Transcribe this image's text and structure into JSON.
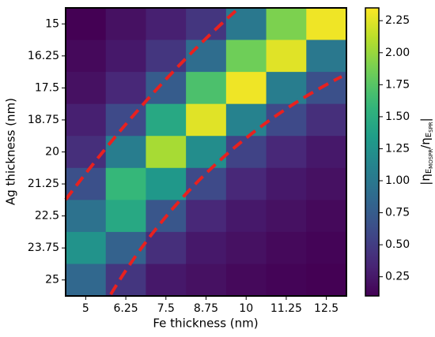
{
  "chart_data": {
    "type": "heatmap",
    "x_label": "Fe thickness (nm)",
    "y_label": "Ag thickness (nm)",
    "colorbar_label": [
      "|η",
      "E",
      "MOSPR",
      "/η",
      "E",
      "SPR",
      "|"
    ],
    "x_categories": [
      "5",
      "6.25",
      "7.5",
      "8.75",
      "10",
      "11.25",
      "12.5"
    ],
    "y_categories": [
      "15",
      "16.25",
      "17.5",
      "18.75",
      "20",
      "21.25",
      "22.5",
      "23.75",
      "25"
    ],
    "z": [
      [
        0.1,
        0.2,
        0.3,
        0.45,
        1.0,
        1.9,
        2.3
      ],
      [
        0.15,
        0.25,
        0.45,
        0.9,
        1.85,
        2.25,
        1.0
      ],
      [
        0.2,
        0.35,
        0.75,
        1.7,
        2.3,
        1.05,
        0.65
      ],
      [
        0.3,
        0.6,
        1.45,
        2.25,
        1.1,
        0.6,
        0.4
      ],
      [
        0.4,
        1.05,
        2.05,
        1.2,
        0.55,
        0.35,
        0.25
      ],
      [
        0.65,
        1.6,
        1.3,
        0.6,
        0.35,
        0.25,
        0.2
      ],
      [
        0.95,
        1.45,
        0.7,
        0.35,
        0.25,
        0.2,
        0.15
      ],
      [
        1.25,
        0.8,
        0.4,
        0.25,
        0.2,
        0.15,
        0.12
      ],
      [
        0.85,
        0.45,
        0.25,
        0.2,
        0.15,
        0.12,
        0.1
      ]
    ],
    "colormap": "viridis",
    "zlim": [
      0.1,
      2.35
    ],
    "zticks": [
      0.25,
      {
        "value": 0.5,
        "label": "0.50"
      },
      0.75,
      {
        "value": 1,
        "label": "1.00"
      },
      1.25,
      {
        "value": 1.5,
        "label": "1.50"
      },
      1.75,
      {
        "value": 2,
        "label": "2.00"
      },
      2.25
    ]
  }
}
